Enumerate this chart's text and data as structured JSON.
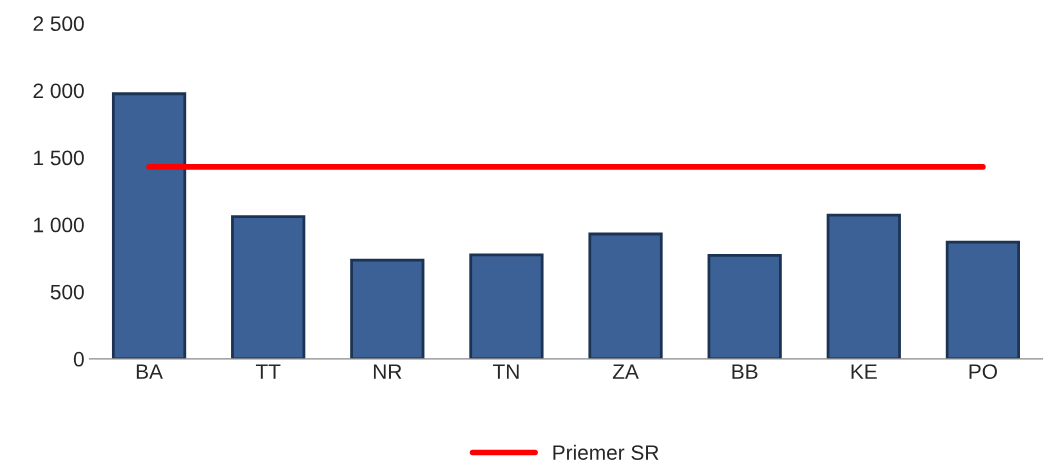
{
  "chart_data": {
    "type": "bar",
    "categories": [
      "BA",
      "TT",
      "NR",
      "TN",
      "ZA",
      "BB",
      "KE",
      "PO"
    ],
    "series": [
      {
        "color": "#3b6196",
        "values": [
          1975,
          1060,
          735,
          775,
          930,
          770,
          1070,
          870
        ]
      },
      {
        "name": "Priemer SR",
        "type": "line",
        "color": "#ff0000",
        "values": [
          1430,
          1430,
          1430,
          1430,
          1430,
          1430,
          1430,
          1430
        ]
      }
    ],
    "ylim": [
      0,
      2500
    ],
    "yticks": [
      0,
      500,
      {
        "value": 1000,
        "label": "1 000"
      },
      {
        "value": 1500,
        "label": "1 500"
      },
      {
        "value": 2000,
        "label": "2 000"
      },
      {
        "value": 2500,
        "label": "2 500"
      }
    ],
    "grid": false,
    "legend": "bottom"
  }
}
